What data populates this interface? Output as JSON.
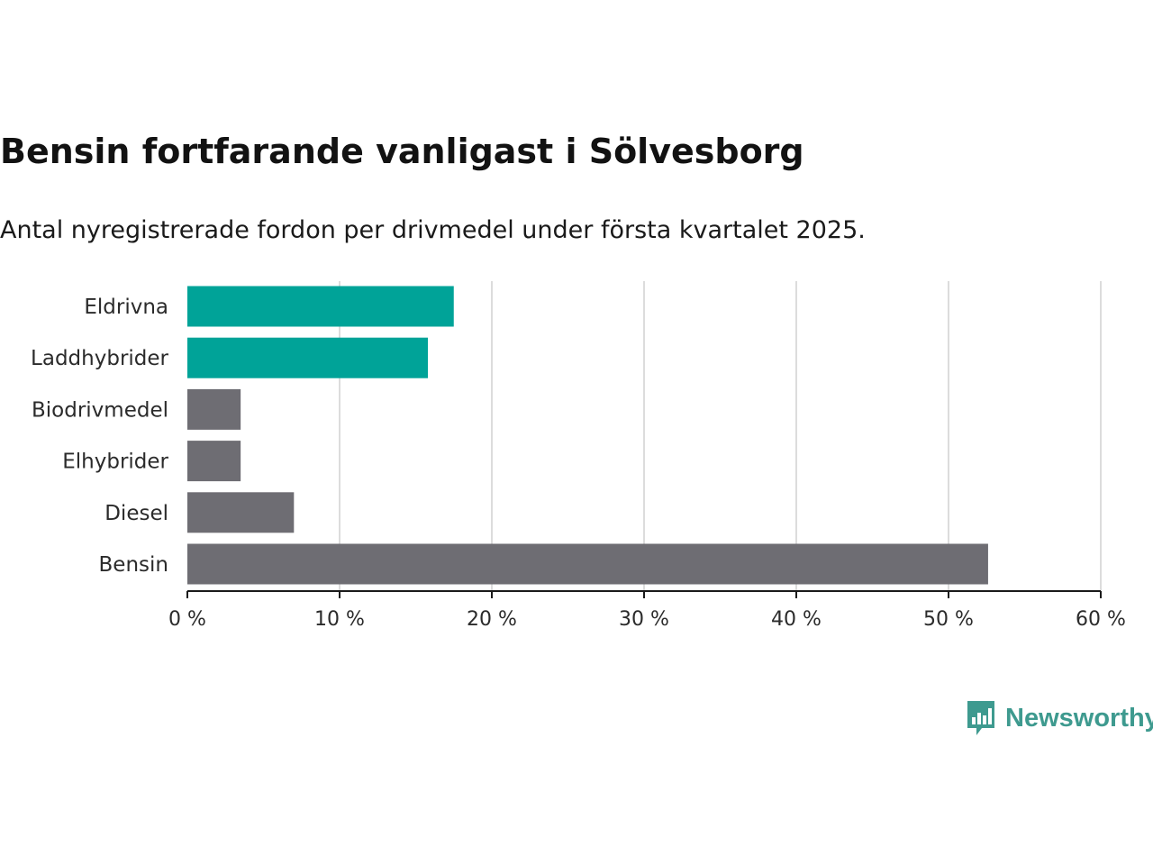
{
  "title": "Bensin fortfarande vanligast i Sölvesborg",
  "subtitle": "Antal nyregistrerade fordon per drivmedel under första kvartalet 2025.",
  "brand": {
    "name": "Newsworthy",
    "color": "#3e9a8f",
    "icon": "newsworthy-chart-bubble-icon"
  },
  "chart_data": {
    "type": "bar",
    "orientation": "horizontal",
    "categories": [
      "Eldrivna",
      "Laddhybrider",
      "Biodrivmedel",
      "Elhybrider",
      "Diesel",
      "Bensin"
    ],
    "values": [
      17.5,
      15.8,
      3.5,
      3.5,
      7.0,
      52.6
    ],
    "colors": [
      "#00a398",
      "#00a398",
      "#6e6d73",
      "#6e6d73",
      "#6e6d73",
      "#6e6d73"
    ],
    "xlim": [
      0,
      60
    ],
    "xticks": [
      0,
      10,
      20,
      30,
      40,
      50,
      60
    ],
    "xtick_labels": [
      "0 %",
      "10 %",
      "20 %",
      "30 %",
      "40 %",
      "50 %",
      "60 %"
    ],
    "grid": true
  }
}
